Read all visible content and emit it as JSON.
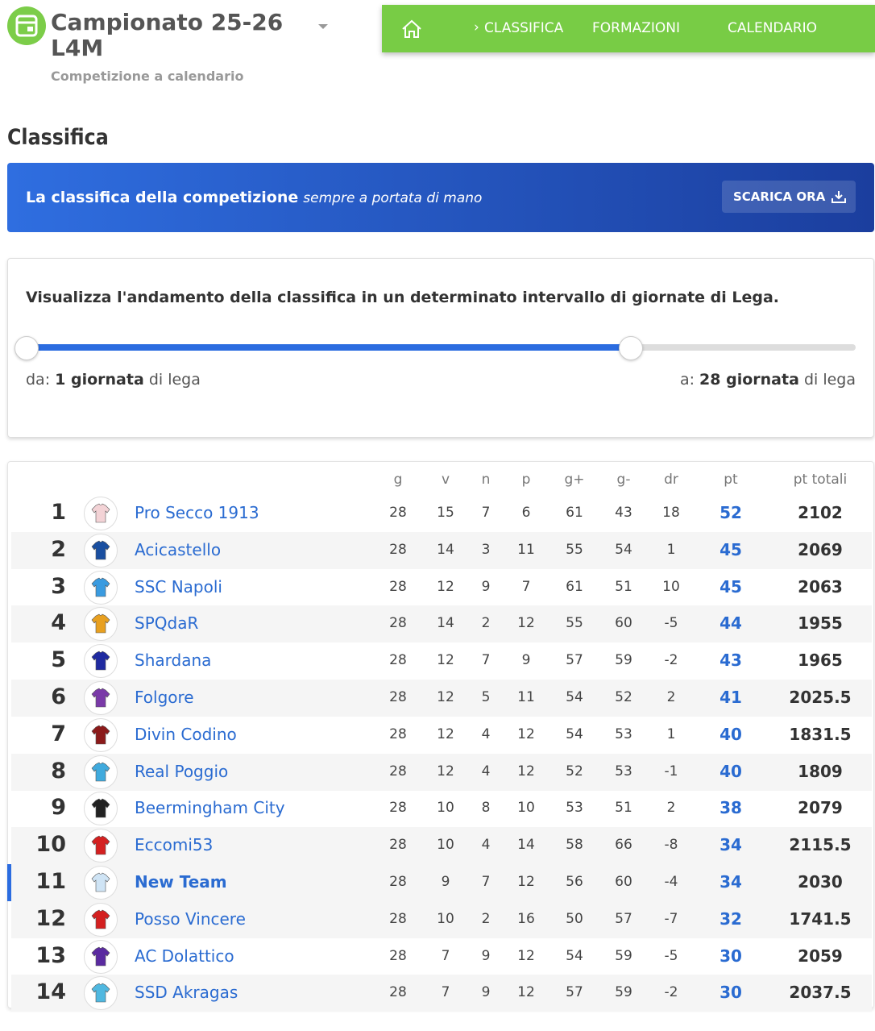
{
  "header": {
    "title_line1": "Campionato 25-26",
    "title_line2": "L4M",
    "subtitle": "Competizione a calendario"
  },
  "nav": {
    "items": [
      "CLASSIFICA",
      "FORMAZIONI",
      "CALENDARIO"
    ]
  },
  "section_title": "Classifica",
  "banner": {
    "text_bold": "La classifica della competizione",
    "text_italic": "sempre a portata di mano",
    "button": "SCARICA ORA"
  },
  "range_panel": {
    "description": "Visualizza l'andamento della classifica in un determinato intervallo di giornate di Lega.",
    "from_prefix": "da:",
    "from_value": "1 giornata",
    "from_suffix": "di lega",
    "to_prefix": "a:",
    "to_value": "28 giornata",
    "to_suffix": "di lega"
  },
  "table": {
    "columns": [
      "g",
      "v",
      "n",
      "p",
      "g+",
      "g-",
      "dr",
      "pt",
      "pt totali"
    ],
    "rows": [
      [
        1,
        "Pro Secco 1913",
        28,
        15,
        7,
        6,
        61,
        43,
        18,
        52,
        2102
      ],
      [
        2,
        "Acicastello",
        28,
        14,
        3,
        11,
        55,
        54,
        1,
        45,
        2069
      ],
      [
        3,
        "SSC Napoli",
        28,
        12,
        9,
        7,
        61,
        51,
        10,
        45,
        2063
      ],
      [
        4,
        "SPQdaR",
        28,
        14,
        2,
        12,
        55,
        60,
        -5,
        44,
        1955
      ],
      [
        5,
        "Shardana",
        28,
        12,
        7,
        9,
        57,
        59,
        -2,
        43,
        1965
      ],
      [
        6,
        "Folgore",
        28,
        12,
        5,
        11,
        54,
        52,
        2,
        41,
        2025.5
      ],
      [
        7,
        "Divin Codino",
        28,
        12,
        4,
        12,
        54,
        53,
        1,
        40,
        1831.5
      ],
      [
        8,
        "Real Poggio",
        28,
        12,
        4,
        12,
        52,
        53,
        -1,
        40,
        1809
      ],
      [
        9,
        "Beermingham City",
        28,
        10,
        8,
        10,
        53,
        51,
        2,
        38,
        2079
      ],
      [
        10,
        "Eccomi53",
        28,
        10,
        4,
        14,
        58,
        66,
        -8,
        34,
        2115.5
      ],
      [
        11,
        "New Team",
        28,
        9,
        7,
        12,
        56,
        60,
        -4,
        34,
        2030
      ],
      [
        12,
        "Posso Vincere",
        28,
        10,
        2,
        16,
        50,
        57,
        -7,
        32,
        1741.5
      ],
      [
        13,
        "AC Dolattico",
        28,
        7,
        9,
        12,
        54,
        59,
        -5,
        30,
        2059
      ],
      [
        14,
        "SSD Akragas",
        28,
        7,
        9,
        12,
        57,
        59,
        -2,
        30,
        2037.5
      ]
    ]
  }
}
